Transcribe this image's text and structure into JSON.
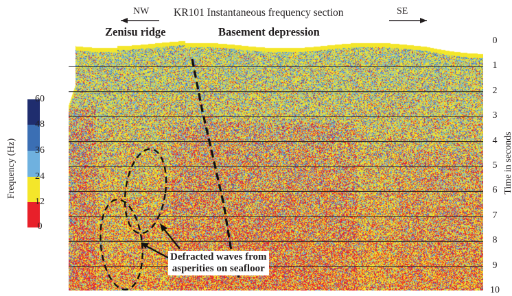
{
  "figure": {
    "title": "KR101 Instantaneous frequency section",
    "dir_left": "NW",
    "dir_right": "SE",
    "label_left": "Zenisu ridge",
    "label_right": "Basement depression",
    "annotation_line1": "Defracted waves from",
    "annotation_line2": "asperities on seafloor"
  },
  "time_axis": {
    "label": "Time in seconds",
    "ticks": [
      "0",
      "1",
      "2",
      "3",
      "4",
      "5",
      "6",
      "7",
      "8",
      "9",
      "10"
    ]
  },
  "colorbar": {
    "label": "Frequency (Hz)",
    "ticks": [
      "60",
      "48",
      "36",
      "24",
      "12",
      "0"
    ],
    "colors": [
      "#1f2d6e",
      "#3b6fb4",
      "#6fb1df",
      "#f4e62a",
      "#e8202a"
    ]
  }
}
